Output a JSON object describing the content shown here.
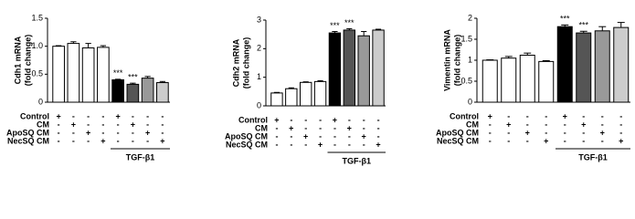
{
  "chart_data": [
    {
      "type": "bar",
      "y_label": [
        "Cdh1 mRNA",
        "(fold change)"
      ],
      "categories": [
        null,
        null,
        null,
        null,
        null,
        null,
        null,
        null
      ],
      "values": [
        1.0,
        1.05,
        0.97,
        0.98,
        0.4,
        0.32,
        0.43,
        0.35
      ],
      "errors": [
        0.01,
        0.03,
        0.08,
        0.03,
        0.01,
        0.02,
        0.03,
        0.02
      ],
      "colors": [
        "#ffffff",
        "#ffffff",
        "#ffffff",
        "#ffffff",
        "#000000",
        "#555555",
        "#999999",
        "#cccccc"
      ],
      "significance": [
        null,
        null,
        null,
        null,
        "***",
        "***",
        null,
        null
      ],
      "ylim": [
        0,
        1.5
      ],
      "yticks": [
        0,
        0.5,
        {
          "value": 1,
          "label": "1.0"
        },
        1.5
      ],
      "treatments": [
        {
          "name": "Control",
          "signs": [
            "+",
            "-",
            "-",
            "-",
            "+",
            "-",
            "-",
            "-"
          ]
        },
        {
          "name": "CM",
          "signs": [
            "-",
            "+",
            "-",
            "-",
            "-",
            "+",
            "-",
            "-"
          ]
        },
        {
          "name": "ApoSQ CM",
          "signs": [
            "-",
            "-",
            "+",
            "-",
            "-",
            "-",
            "+",
            "-"
          ]
        },
        {
          "name": "NecSQ CM",
          "signs": [
            "-",
            "-",
            "-",
            "+",
            "-",
            "-",
            "-",
            "+"
          ]
        }
      ],
      "group_label": "TGF-β1"
    },
    {
      "type": "bar",
      "y_label": [
        "Cdh2 mRNA",
        "(fold change)"
      ],
      "categories": [
        null,
        null,
        null,
        null,
        null,
        null,
        null,
        null
      ],
      "values": [
        0.45,
        0.6,
        0.82,
        0.85,
        2.55,
        2.65,
        2.45,
        2.65
      ],
      "errors": [
        0.02,
        0.03,
        0.02,
        0.03,
        0.05,
        0.05,
        0.15,
        0.03
      ],
      "colors": [
        "#ffffff",
        "#ffffff",
        "#ffffff",
        "#ffffff",
        "#000000",
        "#555555",
        "#999999",
        "#cccccc"
      ],
      "significance": [
        null,
        null,
        null,
        null,
        "***",
        "***",
        null,
        null
      ],
      "ylim": [
        0,
        3
      ],
      "yticks": [
        0,
        1,
        2,
        3
      ],
      "treatments": [
        {
          "name": "Control",
          "signs": [
            "+",
            "-",
            "-",
            "-",
            "+",
            "-",
            "-",
            "-"
          ]
        },
        {
          "name": "CM",
          "signs": [
            "-",
            "+",
            "-",
            "-",
            "-",
            "+",
            "-",
            "-"
          ]
        },
        {
          "name": "ApoSQ CM",
          "signs": [
            "-",
            "-",
            "+",
            "-",
            "-",
            "-",
            "+",
            "-"
          ]
        },
        {
          "name": "NecSQ CM",
          "signs": [
            "-",
            "-",
            "-",
            "+",
            "-",
            "-",
            "-",
            "+"
          ]
        }
      ],
      "group_label": "TGF-β1"
    },
    {
      "type": "bar",
      "y_label": [
        "Vimentin mRNA",
        "(fold change)"
      ],
      "categories": [
        null,
        null,
        null,
        null,
        null,
        null,
        null,
        null
      ],
      "values": [
        1.0,
        1.05,
        1.12,
        0.97,
        1.8,
        1.65,
        1.7,
        1.78
      ],
      "errors": [
        0.01,
        0.04,
        0.05,
        0.02,
        0.04,
        0.04,
        0.1,
        0.12
      ],
      "colors": [
        "#ffffff",
        "#ffffff",
        "#ffffff",
        "#ffffff",
        "#000000",
        "#555555",
        "#999999",
        "#cccccc"
      ],
      "significance": [
        null,
        null,
        null,
        null,
        "***",
        "***",
        null,
        null
      ],
      "ylim": [
        0,
        2
      ],
      "yticks": [
        0,
        0.5,
        1,
        1.5,
        2
      ],
      "treatments": [
        {
          "name": "Control",
          "signs": [
            "+",
            "-",
            "-",
            "-",
            "+",
            "-",
            "-",
            "-"
          ]
        },
        {
          "name": "CM",
          "signs": [
            "-",
            "+",
            "-",
            "-",
            "-",
            "+",
            "-",
            "-"
          ]
        },
        {
          "name": "ApoSQ CM",
          "signs": [
            "-",
            "-",
            "+",
            "-",
            "-",
            "-",
            "+",
            "-"
          ]
        },
        {
          "name": "NecSQ CM",
          "signs": [
            "-",
            "-",
            "-",
            "+",
            "-",
            "-",
            "-",
            "+"
          ]
        }
      ],
      "group_label": "TGF-β1"
    }
  ]
}
